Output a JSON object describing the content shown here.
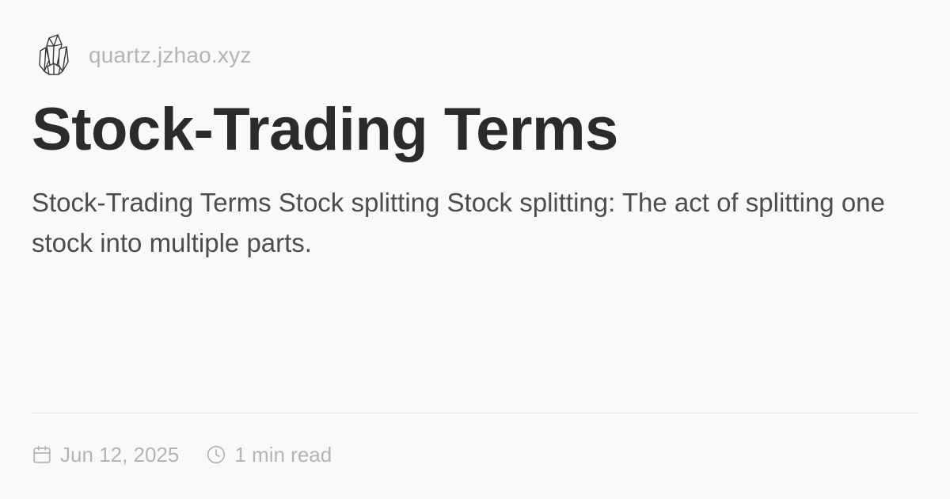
{
  "site": {
    "logo_icon": "crystal-logo-icon",
    "name": "quartz.jzhao.xyz"
  },
  "page": {
    "title": "Stock-Trading Terms",
    "description": "Stock-Trading Terms Stock splitting Stock splitting: The act of splitting one stock into multiple parts."
  },
  "meta": {
    "date": "Jun 12, 2025",
    "date_icon": "calendar-icon",
    "reading_time": "1 min read",
    "reading_time_icon": "clock-icon"
  },
  "colors": {
    "background": "#faf8f8",
    "title": "#2b2b2b",
    "body_text": "#4d4d4d",
    "muted_text": "#b5b3b3"
  }
}
